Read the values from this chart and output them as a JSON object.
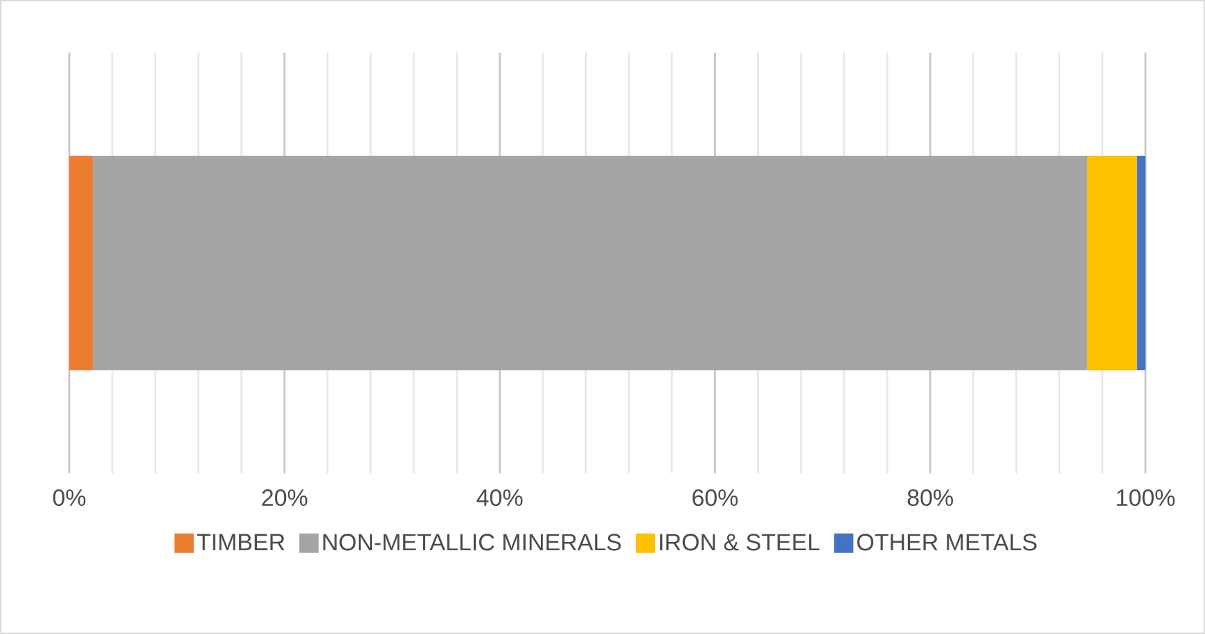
{
  "chart_data": {
    "type": "bar",
    "orientation": "horizontal",
    "stacked": true,
    "categories": [
      null
    ],
    "series": [
      {
        "name": "TIMBER",
        "color": "#ed7d31",
        "values": [
          2.2
        ]
      },
      {
        "name": "NON-METALLIC MINERALS",
        "color": "#a5a5a5",
        "values": [
          92.4
        ]
      },
      {
        "name": "IRON & STEEL",
        "color": "#ffc000",
        "values": [
          4.6
        ]
      },
      {
        "name": "OTHER METALS",
        "color": "#4472c4",
        "values": [
          0.8
        ]
      }
    ],
    "xlim": [
      0,
      100
    ],
    "xticks": [
      {
        "value": 0,
        "label": "0%"
      },
      {
        "value": 4,
        "label": null
      },
      {
        "value": 8,
        "label": null
      },
      {
        "value": 12,
        "label": null
      },
      {
        "value": 16,
        "label": null
      },
      {
        "value": 20,
        "label": "20%"
      },
      {
        "value": 24,
        "label": null
      },
      {
        "value": 28,
        "label": null
      },
      {
        "value": 32,
        "label": null
      },
      {
        "value": 36,
        "label": null
      },
      {
        "value": 40,
        "label": "40%"
      },
      {
        "value": 44,
        "label": null
      },
      {
        "value": 48,
        "label": null
      },
      {
        "value": 52,
        "label": null
      },
      {
        "value": 56,
        "label": null
      },
      {
        "value": 60,
        "label": "60%"
      },
      {
        "value": 64,
        "label": null
      },
      {
        "value": 68,
        "label": null
      },
      {
        "value": 72,
        "label": null
      },
      {
        "value": 76,
        "label": null
      },
      {
        "value": 80,
        "label": "80%"
      },
      {
        "value": 84,
        "label": null
      },
      {
        "value": 88,
        "label": null
      },
      {
        "value": 92,
        "label": null
      },
      {
        "value": 96,
        "label": null
      },
      {
        "value": 100,
        "label": "100%"
      }
    ],
    "grid": "x",
    "legend": "bottom"
  }
}
